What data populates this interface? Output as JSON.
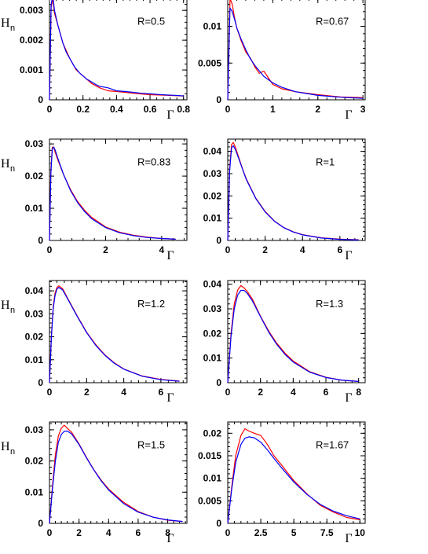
{
  "colors": {
    "simulation": "#ff0000",
    "fit": "#0000ff",
    "axis": "#000000"
  },
  "chart_data": [
    {
      "type": "line",
      "panel": "R=0.5",
      "xlabel": "Γ",
      "ylabel": "H",
      "ylabel_sub": "n",
      "xlim": [
        0,
        0.82
      ],
      "ylim": [
        0,
        0.0034
      ],
      "xticks": [
        0,
        0.2,
        0.4,
        0.6,
        0.8
      ],
      "xticklabels": [
        "0",
        "0.2",
        "0.4",
        "0.6",
        "0.8"
      ],
      "yticks": [
        0,
        0.001,
        0.002,
        0.003
      ],
      "yticklabels": [
        "0",
        "0.001",
        "0.002",
        "0.003"
      ],
      "series": [
        {
          "color": "#ff0000",
          "x": [
            0,
            0.01,
            0.02,
            0.03,
            0.05,
            0.08,
            0.12,
            0.16,
            0.2,
            0.25,
            0.3,
            0.35,
            0.4,
            0.5,
            0.6,
            0.7,
            0.8
          ],
          "y": [
            0,
            0.0031,
            0.0034,
            0.0029,
            0.0025,
            0.0019,
            0.0014,
            0.001,
            0.0008,
            0.00055,
            0.0004,
            0.0003,
            0.00028,
            0.00022,
            0.00017,
            0.00015,
            0.00013
          ]
        },
        {
          "color": "#0000ff",
          "x": [
            0,
            0.01,
            0.02,
            0.03,
            0.05,
            0.08,
            0.1,
            0.12,
            0.15,
            0.18,
            0.2,
            0.22,
            0.25,
            0.28,
            0.3,
            0.35,
            0.4,
            0.45,
            0.5,
            0.55,
            0.6,
            0.65,
            0.7,
            0.75,
            0.8
          ],
          "y": [
            0,
            0.0032,
            0.0035,
            0.003,
            0.0025,
            0.0019,
            0.0016,
            0.0014,
            0.0011,
            0.0009,
            0.0008,
            0.0007,
            0.0006,
            0.0005,
            0.00045,
            0.0004,
            0.0003,
            0.00028,
            0.00025,
            0.00022,
            0.0002,
            0.00018,
            0.00016,
            0.00015,
            0.00013
          ]
        }
      ]
    },
    {
      "type": "line",
      "panel": "R=0.67",
      "xlabel": "Γ",
      "ylabel": "",
      "ylabel_sub": "",
      "xlim": [
        0,
        3.05
      ],
      "ylim": [
        0,
        0.0138
      ],
      "xticks": [
        0,
        1,
        2,
        3
      ],
      "xticklabels": [
        "0",
        "1",
        "2",
        "3"
      ],
      "yticks": [
        0,
        0.005,
        0.01
      ],
      "yticklabels": [
        "0",
        "0.005",
        "0.01"
      ],
      "series": [
        {
          "color": "#ff0000",
          "x": [
            0,
            0.05,
            0.1,
            0.15,
            0.2,
            0.3,
            0.4,
            0.5,
            0.6,
            0.7,
            0.8,
            1,
            1.2,
            1.5,
            2,
            2.5,
            3
          ],
          "y": [
            0,
            0.0138,
            0.013,
            0.0112,
            0.0098,
            0.008,
            0.0065,
            0.0057,
            0.0045,
            0.0036,
            0.0039,
            0.0021,
            0.0015,
            0.0011,
            0.0007,
            0.0004,
            0.0003
          ]
        },
        {
          "color": "#0000ff",
          "x": [
            0,
            0.05,
            0.1,
            0.15,
            0.2,
            0.3,
            0.4,
            0.5,
            0.6,
            0.8,
            1,
            1.2,
            1.5,
            2,
            2.5,
            3
          ],
          "y": [
            0,
            0.0125,
            0.012,
            0.011,
            0.0098,
            0.0082,
            0.0068,
            0.0056,
            0.0047,
            0.0032,
            0.0023,
            0.0017,
            0.0011,
            0.0006,
            0.00035,
            0.0002
          ]
        }
      ]
    },
    {
      "type": "line",
      "panel": "R=0.83",
      "xlabel": "Γ",
      "ylabel": "H",
      "ylabel_sub": "n",
      "xlim": [
        0,
        4.9
      ],
      "ylim": [
        0,
        0.0315
      ],
      "xticks": [
        0,
        2,
        4
      ],
      "xticklabels": [
        "0",
        "2",
        "4"
      ],
      "yticks": [
        0,
        0.01,
        0.02,
        0.03
      ],
      "yticklabels": [
        "0",
        "0.01",
        "0.02",
        "0.03"
      ],
      "series": [
        {
          "color": "#ff0000",
          "x": [
            0,
            0.05,
            0.1,
            0.15,
            0.2,
            0.3,
            0.5,
            0.75,
            1,
            1.25,
            1.5,
            2,
            2.5,
            3,
            3.5,
            4,
            4.5
          ],
          "y": [
            0,
            0.022,
            0.029,
            0.029,
            0.0275,
            0.025,
            0.0205,
            0.0158,
            0.0121,
            0.0094,
            0.0072,
            0.0042,
            0.0026,
            0.0016,
            0.001,
            0.0006,
            0.0004
          ]
        },
        {
          "color": "#0000ff",
          "x": [
            0,
            0.05,
            0.1,
            0.15,
            0.2,
            0.3,
            0.5,
            0.75,
            1,
            1.25,
            1.5,
            2,
            2.5,
            3,
            3.5,
            4,
            4.5
          ],
          "y": [
            0,
            0.021,
            0.0285,
            0.029,
            0.0282,
            0.0255,
            0.0205,
            0.0155,
            0.0118,
            0.009,
            0.0068,
            0.004,
            0.0024,
            0.0015,
            0.0009,
            0.0006,
            0.0004
          ]
        }
      ]
    },
    {
      "type": "line",
      "panel": "R=1",
      "xlabel": "Γ",
      "ylabel": "",
      "ylabel_sub": "",
      "xlim": [
        0,
        7.35
      ],
      "ylim": [
        0,
        0.0455
      ],
      "xticks": [
        0,
        2,
        4,
        6
      ],
      "xticklabels": [
        "0",
        "2",
        "4",
        "6"
      ],
      "yticks": [
        0,
        0.01,
        0.02,
        0.03,
        0.04
      ],
      "yticklabels": [
        "0",
        "0.01",
        "0.02",
        "0.03",
        "0.04"
      ],
      "series": [
        {
          "color": "#ff0000",
          "x": [
            0,
            0.1,
            0.2,
            0.3,
            0.4,
            0.6,
            0.8,
            1,
            1.5,
            2,
            2.5,
            3,
            3.5,
            4,
            5,
            6,
            7
          ],
          "y": [
            0,
            0.032,
            0.043,
            0.044,
            0.042,
            0.037,
            0.032,
            0.0275,
            0.019,
            0.013,
            0.0087,
            0.0058,
            0.0039,
            0.0026,
            0.0012,
            0.0006,
            0.0003
          ]
        },
        {
          "color": "#0000ff",
          "x": [
            0,
            0.1,
            0.2,
            0.3,
            0.4,
            0.6,
            0.8,
            1,
            1.5,
            2,
            2.5,
            3,
            3.5,
            4,
            5,
            6,
            7
          ],
          "y": [
            0,
            0.031,
            0.0415,
            0.0425,
            0.041,
            0.0365,
            0.0318,
            0.0272,
            0.0188,
            0.0128,
            0.0086,
            0.0057,
            0.0038,
            0.0025,
            0.0011,
            0.0005,
            0.0002
          ]
        }
      ]
    },
    {
      "type": "line",
      "panel": "R=1.2",
      "xlabel": "Γ",
      "ylabel": "H",
      "ylabel_sub": "n",
      "xlim": [
        0,
        7.4
      ],
      "ylim": [
        0,
        0.0445
      ],
      "xticks": [
        0,
        2,
        4,
        6
      ],
      "xticklabels": [
        "0",
        "2",
        "4",
        "6"
      ],
      "yticks": [
        0,
        0.01,
        0.02,
        0.03,
        0.04
      ],
      "yticklabels": [
        "0",
        "0.01",
        "0.02",
        "0.03",
        "0.04"
      ],
      "series": [
        {
          "color": "#ff0000",
          "x": [
            0,
            0.1,
            0.2,
            0.3,
            0.4,
            0.5,
            0.7,
            1,
            1.5,
            2,
            2.5,
            3,
            3.5,
            4,
            5,
            6,
            7
          ],
          "y": [
            0,
            0.02,
            0.033,
            0.039,
            0.0415,
            0.0422,
            0.041,
            0.0365,
            0.029,
            0.022,
            0.0165,
            0.012,
            0.0086,
            0.006,
            0.0029,
            0.0014,
            0.0007
          ]
        },
        {
          "color": "#0000ff",
          "x": [
            0,
            0.1,
            0.2,
            0.3,
            0.4,
            0.5,
            0.7,
            1,
            1.5,
            2,
            2.5,
            3,
            3.5,
            4,
            5,
            6,
            7
          ],
          "y": [
            0,
            0.0195,
            0.032,
            0.038,
            0.0408,
            0.0415,
            0.0405,
            0.0362,
            0.0288,
            0.0218,
            0.0162,
            0.0118,
            0.0084,
            0.0059,
            0.0028,
            0.0013,
            0.0006
          ]
        }
      ]
    },
    {
      "type": "line",
      "panel": "R=1.3",
      "xlabel": "Γ",
      "ylabel": "",
      "ylabel_sub": "",
      "xlim": [
        0,
        8.4
      ],
      "ylim": [
        0,
        0.0415
      ],
      "xticks": [
        0,
        2,
        4,
        6,
        8
      ],
      "xticklabels": [
        "0",
        "2",
        "4",
        "6",
        "8"
      ],
      "yticks": [
        0,
        0.01,
        0.02,
        0.03,
        0.04
      ],
      "yticklabels": [
        "0",
        "0.01",
        "0.02",
        "0.03",
        "0.04"
      ],
      "series": [
        {
          "color": "#ff0000",
          "x": [
            0,
            0.2,
            0.4,
            0.6,
            0.8,
            1,
            1.2,
            1.5,
            2,
            2.5,
            3,
            3.5,
            4,
            5,
            6,
            7,
            8
          ],
          "y": [
            0,
            0.02,
            0.032,
            0.0375,
            0.0395,
            0.0385,
            0.037,
            0.034,
            0.027,
            0.021,
            0.016,
            0.012,
            0.0088,
            0.0045,
            0.0022,
            0.001,
            0.0005
          ]
        },
        {
          "color": "#0000ff",
          "x": [
            0,
            0.2,
            0.4,
            0.6,
            0.8,
            1,
            1.2,
            1.5,
            2,
            2.5,
            3,
            3.5,
            4,
            5,
            6,
            7,
            8
          ],
          "y": [
            0,
            0.019,
            0.03,
            0.0355,
            0.0375,
            0.0375,
            0.0362,
            0.0333,
            0.0268,
            0.0206,
            0.0155,
            0.0115,
            0.0084,
            0.0043,
            0.0021,
            0.001,
            0.0005
          ]
        }
      ]
    },
    {
      "type": "line",
      "panel": "R=1.5",
      "xlabel": "Γ",
      "ylabel": "H",
      "ylabel_sub": "n",
      "xlim": [
        0,
        9.3
      ],
      "ylim": [
        0,
        0.0325
      ],
      "xticks": [
        0,
        2,
        4,
        6,
        8
      ],
      "xticklabels": [
        "0",
        "2",
        "4",
        "6",
        "8"
      ],
      "yticks": [
        0,
        0.01,
        0.02,
        0.03
      ],
      "yticklabels": [
        "0",
        "0.01",
        "0.02",
        "0.03"
      ],
      "series": [
        {
          "color": "#ff0000",
          "x": [
            0,
            0.2,
            0.4,
            0.6,
            0.8,
            1,
            1.2,
            1.5,
            2,
            2.5,
            3,
            3.5,
            4,
            5,
            6,
            7,
            8,
            9
          ],
          "y": [
            0,
            0.012,
            0.022,
            0.028,
            0.0305,
            0.0315,
            0.0305,
            0.0292,
            0.0255,
            0.0212,
            0.0172,
            0.0138,
            0.011,
            0.0068,
            0.0038,
            0.002,
            0.001,
            0.0006
          ]
        },
        {
          "color": "#0000ff",
          "x": [
            0,
            0.2,
            0.4,
            0.6,
            0.8,
            1,
            1.2,
            1.5,
            2,
            2.5,
            3,
            3.5,
            4,
            5,
            6,
            7,
            8,
            9
          ],
          "y": [
            0,
            0.011,
            0.02,
            0.026,
            0.0285,
            0.0295,
            0.0296,
            0.0287,
            0.0253,
            0.021,
            0.0171,
            0.0136,
            0.0107,
            0.0064,
            0.0036,
            0.002,
            0.0011,
            0.0006
          ]
        }
      ]
    },
    {
      "type": "line",
      "panel": "R=1.67",
      "xlabel": "Γ",
      "ylabel": "",
      "ylabel_sub": "",
      "xlim": [
        0,
        10.4
      ],
      "ylim": [
        0,
        0.0225
      ],
      "xticks": [
        0,
        2.5,
        5,
        7.5,
        10
      ],
      "xticklabels": [
        "0",
        "2.5",
        "5",
        "7.5",
        "10"
      ],
      "yticks": [
        0,
        0.005,
        0.01,
        0.015,
        0.02
      ],
      "yticklabels": [
        "0",
        "0.005",
        "0.01",
        "0.015",
        "0.02"
      ],
      "series": [
        {
          "color": "#ff0000",
          "x": [
            0,
            0.3,
            0.6,
            1,
            1.3,
            1.6,
            2,
            2.5,
            3,
            3.5,
            4,
            5,
            6,
            7,
            8,
            9,
            10
          ],
          "y": [
            0,
            0.008,
            0.015,
            0.0195,
            0.021,
            0.0205,
            0.02,
            0.0195,
            0.0175,
            0.015,
            0.0132,
            0.0095,
            0.0065,
            0.004,
            0.0025,
            0.0013,
            0.0008
          ]
        },
        {
          "color": "#0000ff",
          "x": [
            0,
            0.3,
            0.6,
            1,
            1.3,
            1.6,
            2,
            2.5,
            3,
            3.5,
            4,
            5,
            6,
            7,
            8,
            9,
            10
          ],
          "y": [
            0,
            0.0075,
            0.0135,
            0.0175,
            0.0189,
            0.0192,
            0.019,
            0.018,
            0.0163,
            0.0144,
            0.0126,
            0.0092,
            0.0064,
            0.0042,
            0.0027,
            0.0017,
            0.001
          ]
        }
      ]
    }
  ]
}
